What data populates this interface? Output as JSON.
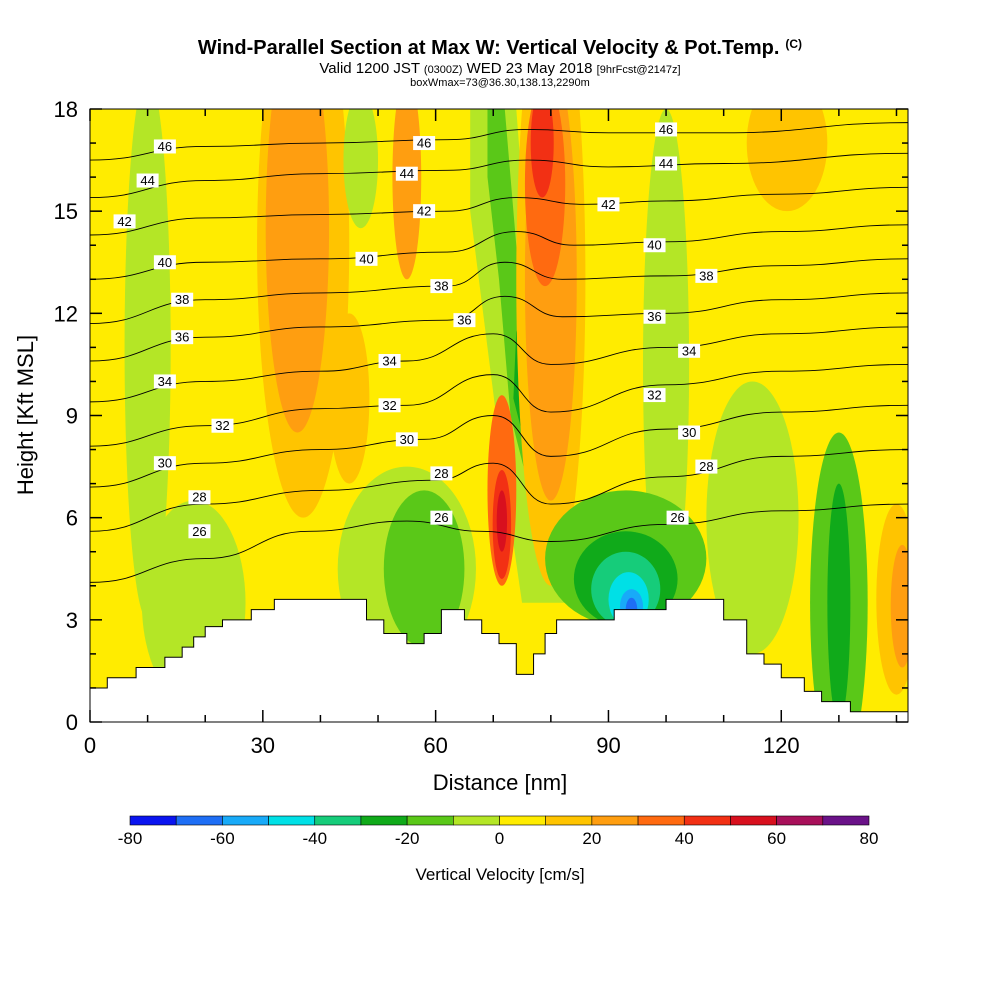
{
  "header": {
    "title": "Wind-Parallel Section at Max W: Vertical Velocity & Pot.Temp.",
    "title_unit": "(C)",
    "valid_prefix": "Valid 1200 JST",
    "valid_utc": "(0300Z)",
    "valid_date": "WED 23 May 2018",
    "forecast_tag": "[9hrFcst@2147z]",
    "box_info": "boxWmax=73@36.30,138.13,2290m"
  },
  "chart_data": {
    "type": "heatmap",
    "xlabel": "Distance [nm]",
    "ylabel": "Height [Kft MSL]",
    "xlim": [
      0,
      142
    ],
    "ylim": [
      0,
      18
    ],
    "x_ticks": [
      0,
      30,
      60,
      90,
      120
    ],
    "y_ticks": [
      0,
      3,
      6,
      9,
      12,
      15,
      18
    ],
    "colorbar": {
      "label": "Vertical Velocity [cm/s]",
      "ticks": [
        -80,
        -60,
        -40,
        -20,
        0,
        20,
        40,
        60,
        80
      ],
      "levels": [
        -80,
        -70,
        -60,
        -50,
        -40,
        -30,
        -20,
        -10,
        0,
        10,
        20,
        30,
        40,
        50,
        60,
        70,
        80
      ],
      "colors": [
        "#0a14f0",
        "#1e6ef5",
        "#18aaf8",
        "#00e0e6",
        "#16cc7a",
        "#10aa1a",
        "#5ac818",
        "#b4e626",
        "#ffec00",
        "#ffc400",
        "#ff9e10",
        "#ff6a10",
        "#f23014",
        "#d8101e",
        "#a8105a",
        "#6a1288"
      ]
    },
    "terrain": [
      [
        0,
        1
      ],
      [
        3,
        1
      ],
      [
        3,
        1.3
      ],
      [
        8,
        1.3
      ],
      [
        8,
        1.6
      ],
      [
        13,
        1.6
      ],
      [
        13,
        1.9
      ],
      [
        16,
        1.9
      ],
      [
        16,
        2.2
      ],
      [
        18,
        2.2
      ],
      [
        18,
        2.5
      ],
      [
        20,
        2.5
      ],
      [
        20,
        2.8
      ],
      [
        23,
        2.8
      ],
      [
        23,
        3.0
      ],
      [
        28,
        3.0
      ],
      [
        28,
        3.3
      ],
      [
        32,
        3.3
      ],
      [
        32,
        3.6
      ],
      [
        48,
        3.6
      ],
      [
        48,
        3.0
      ],
      [
        51,
        3.0
      ],
      [
        51,
        2.6
      ],
      [
        55,
        2.6
      ],
      [
        55,
        2.3
      ],
      [
        58,
        2.3
      ],
      [
        58,
        2.6
      ],
      [
        61,
        2.6
      ],
      [
        61,
        3.3
      ],
      [
        65,
        3.3
      ],
      [
        65,
        3.0
      ],
      [
        68,
        3.0
      ],
      [
        68,
        2.6
      ],
      [
        71,
        2.6
      ],
      [
        71,
        2.3
      ],
      [
        74,
        2.3
      ],
      [
        74,
        1.4
      ],
      [
        77,
        1.4
      ],
      [
        77,
        2.0
      ],
      [
        79,
        2.0
      ],
      [
        79,
        2.6
      ],
      [
        81,
        2.6
      ],
      [
        81,
        3.0
      ],
      [
        91,
        3.0
      ],
      [
        91,
        3.3
      ],
      [
        100,
        3.3
      ],
      [
        100,
        3.6
      ],
      [
        110,
        3.6
      ],
      [
        110,
        3.0
      ],
      [
        114,
        3.0
      ],
      [
        114,
        2.0
      ],
      [
        117,
        2.0
      ],
      [
        117,
        1.7
      ],
      [
        120,
        1.7
      ],
      [
        120,
        1.3
      ],
      [
        124,
        1.3
      ],
      [
        124,
        0.9
      ],
      [
        127,
        0.9
      ],
      [
        127,
        0.6
      ],
      [
        132,
        0.6
      ],
      [
        132,
        0.3
      ],
      [
        142,
        0.3
      ]
    ],
    "theta_contours": [
      {
        "label": "26",
        "points": [
          [
            0,
            4.1
          ],
          [
            20,
            4.8
          ],
          [
            38,
            5.6
          ],
          [
            55,
            5.9
          ],
          [
            68,
            5.6
          ],
          [
            80,
            5.3
          ],
          [
            100,
            5.8
          ],
          [
            120,
            6.2
          ],
          [
            142,
            6.4
          ]
        ]
      },
      {
        "label": "28",
        "points": [
          [
            0,
            5.6
          ],
          [
            20,
            6.4
          ],
          [
            40,
            6.8
          ],
          [
            60,
            7.1
          ],
          [
            70,
            7.6
          ],
          [
            80,
            6.4
          ],
          [
            100,
            7.2
          ],
          [
            120,
            7.8
          ],
          [
            142,
            8.0
          ]
        ]
      },
      {
        "label": "30",
        "points": [
          [
            0,
            6.9
          ],
          [
            20,
            7.6
          ],
          [
            40,
            8.0
          ],
          [
            58,
            8.3
          ],
          [
            70,
            9.0
          ],
          [
            80,
            7.8
          ],
          [
            100,
            8.6
          ],
          [
            120,
            9.1
          ],
          [
            142,
            9.3
          ]
        ]
      },
      {
        "label": "32",
        "points": [
          [
            0,
            8.1
          ],
          [
            20,
            8.7
          ],
          [
            40,
            9.2
          ],
          [
            55,
            9.3
          ],
          [
            70,
            10.2
          ],
          [
            80,
            9.1
          ],
          [
            100,
            9.9
          ],
          [
            120,
            10.3
          ],
          [
            142,
            10.5
          ]
        ]
      },
      {
        "label": "34",
        "points": [
          [
            0,
            9.4
          ],
          [
            20,
            10.0
          ],
          [
            40,
            10.3
          ],
          [
            55,
            10.6
          ],
          [
            70,
            11.4
          ],
          [
            80,
            10.5
          ],
          [
            100,
            11.0
          ],
          [
            120,
            11.4
          ],
          [
            142,
            11.6
          ]
        ]
      },
      {
        "label": "36",
        "points": [
          [
            0,
            10.6
          ],
          [
            20,
            11.3
          ],
          [
            40,
            11.6
          ],
          [
            62,
            11.8
          ],
          [
            72,
            12.5
          ],
          [
            82,
            11.9
          ],
          [
            100,
            12.0
          ],
          [
            120,
            12.4
          ],
          [
            142,
            12.6
          ]
        ]
      },
      {
        "label": "38",
        "points": [
          [
            0,
            11.7
          ],
          [
            20,
            12.4
          ],
          [
            40,
            12.6
          ],
          [
            62,
            12.8
          ],
          [
            72,
            13.5
          ],
          [
            82,
            13.0
          ],
          [
            100,
            13.1
          ],
          [
            120,
            13.4
          ],
          [
            142,
            13.6
          ]
        ]
      },
      {
        "label": "40",
        "points": [
          [
            0,
            13.0
          ],
          [
            20,
            13.5
          ],
          [
            40,
            13.6
          ],
          [
            62,
            13.8
          ],
          [
            74,
            14.4
          ],
          [
            84,
            14.0
          ],
          [
            100,
            14.1
          ],
          [
            120,
            14.4
          ],
          [
            142,
            14.6
          ]
        ]
      },
      {
        "label": "42",
        "points": [
          [
            0,
            14.3
          ],
          [
            20,
            14.8
          ],
          [
            40,
            14.9
          ],
          [
            62,
            15.0
          ],
          [
            74,
            15.4
          ],
          [
            86,
            15.2
          ],
          [
            100,
            15.3
          ],
          [
            120,
            15.5
          ],
          [
            142,
            15.7
          ]
        ]
      },
      {
        "label": "44",
        "points": [
          [
            0,
            15.4
          ],
          [
            20,
            15.9
          ],
          [
            40,
            16.1
          ],
          [
            62,
            16.2
          ],
          [
            76,
            16.5
          ],
          [
            90,
            16.3
          ],
          [
            110,
            16.4
          ],
          [
            142,
            16.7
          ]
        ]
      },
      {
        "label": "46",
        "points": [
          [
            0,
            16.5
          ],
          [
            20,
            16.9
          ],
          [
            40,
            17.0
          ],
          [
            62,
            17.1
          ],
          [
            76,
            17.4
          ],
          [
            90,
            17.3
          ],
          [
            110,
            17.3
          ],
          [
            142,
            17.6
          ]
        ]
      }
    ],
    "contour_labels": [
      {
        "text": "46",
        "x": 13,
        "y": 16.9
      },
      {
        "text": "46",
        "x": 58,
        "y": 17.0
      },
      {
        "text": "46",
        "x": 100,
        "y": 17.4
      },
      {
        "text": "44",
        "x": 10,
        "y": 15.9
      },
      {
        "text": "44",
        "x": 55,
        "y": 16.1
      },
      {
        "text": "44",
        "x": 100,
        "y": 16.4
      },
      {
        "text": "42",
        "x": 6,
        "y": 14.7
      },
      {
        "text": "42",
        "x": 58,
        "y": 15.0
      },
      {
        "text": "42",
        "x": 90,
        "y": 15.2
      },
      {
        "text": "40",
        "x": 13,
        "y": 13.5
      },
      {
        "text": "40",
        "x": 48,
        "y": 13.6
      },
      {
        "text": "40",
        "x": 98,
        "y": 14.0
      },
      {
        "text": "38",
        "x": 16,
        "y": 12.4
      },
      {
        "text": "38",
        "x": 61,
        "y": 12.8
      },
      {
        "text": "38",
        "x": 107,
        "y": 13.1
      },
      {
        "text": "36",
        "x": 16,
        "y": 11.3
      },
      {
        "text": "36",
        "x": 65,
        "y": 11.8
      },
      {
        "text": "36",
        "x": 98,
        "y": 11.9
      },
      {
        "text": "34",
        "x": 13,
        "y": 10.0
      },
      {
        "text": "34",
        "x": 52,
        "y": 10.6
      },
      {
        "text": "34",
        "x": 104,
        "y": 10.9
      },
      {
        "text": "32",
        "x": 23,
        "y": 8.7
      },
      {
        "text": "32",
        "x": 52,
        "y": 9.3
      },
      {
        "text": "32",
        "x": 98,
        "y": 9.6
      },
      {
        "text": "30",
        "x": 13,
        "y": 7.6
      },
      {
        "text": "30",
        "x": 55,
        "y": 8.3
      },
      {
        "text": "30",
        "x": 104,
        "y": 8.5
      },
      {
        "text": "28",
        "x": 19,
        "y": 6.6
      },
      {
        "text": "28",
        "x": 61,
        "y": 7.3
      },
      {
        "text": "28",
        "x": 107,
        "y": 7.5
      },
      {
        "text": "26",
        "x": 19,
        "y": 5.6
      },
      {
        "text": "26",
        "x": 61,
        "y": 6.0
      },
      {
        "text": "26",
        "x": 102,
        "y": 6.0
      }
    ],
    "velocity_features": [
      {
        "value": 45,
        "cx": 71.5,
        "cy": 5.8,
        "rx": 1.6,
        "ry": 1.6
      },
      {
        "value": 55,
        "cx": 71.5,
        "cy": 5.9,
        "rx": 0.9,
        "ry": 0.9
      },
      {
        "value": 35,
        "cx": 71.5,
        "cy": 6.8,
        "rx": 2.5,
        "ry": 2.8
      },
      {
        "value": 45,
        "cx": 78.5,
        "cy": 17.0,
        "rx": 2.0,
        "ry": 1.6
      },
      {
        "value": 35,
        "cx": 79,
        "cy": 15.8,
        "rx": 3.5,
        "ry": 3.0
      },
      {
        "value": 25,
        "cx": 80,
        "cy": 13.0,
        "rx": 4.5,
        "ry": 6.5
      },
      {
        "value": 15,
        "cx": 80,
        "cy": 13.0,
        "rx": 6.0,
        "ry": 9.0
      },
      {
        "value": 25,
        "cx": 36,
        "cy": 14.5,
        "rx": 5.5,
        "ry": 6.0
      },
      {
        "value": 15,
        "cx": 37,
        "cy": 14.0,
        "rx": 8.0,
        "ry": 8.0
      },
      {
        "value": 25,
        "cx": 55,
        "cy": 16.0,
        "rx": 2.5,
        "ry": 3.0
      },
      {
        "value": 15,
        "cx": 45,
        "cy": 9.5,
        "rx": 3.5,
        "ry": 2.5
      },
      {
        "value": 15,
        "cx": 121,
        "cy": 17.0,
        "rx": 7.0,
        "ry": 2.0
      },
      {
        "value": 15,
        "cx": 140,
        "cy": 3.6,
        "rx": 3.5,
        "ry": 2.8
      },
      {
        "value": 25,
        "cx": 141,
        "cy": 3.4,
        "rx": 2.0,
        "ry": 1.8
      },
      {
        "value": -5,
        "cx": 10,
        "cy": 11.0,
        "rx": 4.0,
        "ry": 8.0
      },
      {
        "value": -5,
        "cx": 18,
        "cy": 3.5,
        "rx": 9.0,
        "ry": 3.0
      },
      {
        "value": -5,
        "cx": 55,
        "cy": 4.5,
        "rx": 12.0,
        "ry": 3.0
      },
      {
        "value": -5,
        "cx": 100,
        "cy": 10.5,
        "rx": 4.0,
        "ry": 7.5
      },
      {
        "value": -5,
        "cx": 47,
        "cy": 16.5,
        "rx": 3.0,
        "ry": 2.0
      },
      {
        "value": -5,
        "cx": 115,
        "cy": 6.0,
        "rx": 8.0,
        "ry": 4.0
      },
      {
        "value": -15,
        "cx": 58,
        "cy": 4.5,
        "rx": 7.0,
        "ry": 2.3
      },
      {
        "value": -15,
        "cx": 130,
        "cy": 3.5,
        "rx": 5.0,
        "ry": 5.0
      },
      {
        "value": -25,
        "cx": 130,
        "cy": 3.5,
        "rx": 2.0,
        "ry": 3.5
      },
      {
        "value": -15,
        "cx": 93,
        "cy": 4.8,
        "rx": 14.0,
        "ry": 2.0
      },
      {
        "value": -25,
        "cx": 93,
        "cy": 4.2,
        "rx": 9.0,
        "ry": 1.4
      },
      {
        "value": -35,
        "cx": 93,
        "cy": 3.9,
        "rx": 6.0,
        "ry": 1.1
      },
      {
        "value": -45,
        "cx": 93.5,
        "cy": 3.6,
        "rx": 3.5,
        "ry": 0.8
      },
      {
        "value": -55,
        "cx": 94,
        "cy": 3.4,
        "rx": 2.0,
        "ry": 0.5
      },
      {
        "value": -65,
        "cx": 94,
        "cy": 3.3,
        "rx": 1.0,
        "ry": 0.35
      }
    ],
    "downdraft_band": [
      {
        "value": -5,
        "points": [
          [
            66,
            18
          ],
          [
            74,
            18
          ],
          [
            78,
            9
          ],
          [
            82,
            6
          ],
          [
            86,
            3.5
          ],
          [
            75,
            3.5
          ],
          [
            72,
            7
          ],
          [
            69,
            11
          ],
          [
            66,
            15
          ]
        ]
      },
      {
        "value": -15,
        "points": [
          [
            69,
            18
          ],
          [
            72,
            18
          ],
          [
            75,
            12
          ],
          [
            77,
            9
          ],
          [
            76,
            7
          ],
          [
            73,
            9
          ],
          [
            71,
            13
          ],
          [
            69,
            16
          ]
        ]
      },
      {
        "value": -25,
        "points": [
          [
            74,
            11.5
          ],
          [
            76,
            10.5
          ],
          [
            75,
            8.5
          ],
          [
            73.5,
            9.5
          ]
        ]
      }
    ]
  }
}
